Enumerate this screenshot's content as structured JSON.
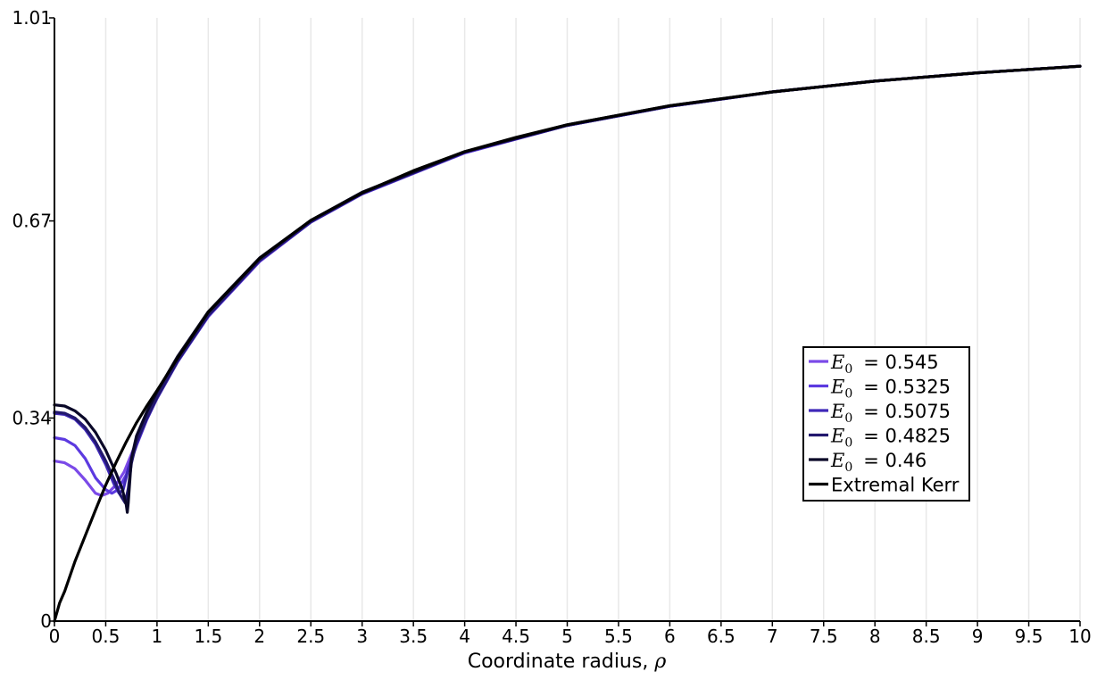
{
  "chart_data": {
    "type": "line",
    "title": "",
    "xlabel": "Coordinate radius, ",
    "xlabel_symbol": "ρ",
    "ylabel": "",
    "xlim": [
      0,
      10
    ],
    "ylim": [
      0,
      1.01
    ],
    "x_ticks": [
      0,
      0.5,
      1,
      1.5,
      2,
      2.5,
      3,
      3.5,
      4,
      4.5,
      5,
      5.5,
      6,
      6.5,
      7,
      7.5,
      8,
      8.5,
      9,
      9.5,
      10
    ],
    "x_tick_labels": [
      "0",
      "0.5",
      "1",
      "1.5",
      "2",
      "2.5",
      "3",
      "3.5",
      "4",
      "4.5",
      "5",
      "5.5",
      "6",
      "6.5",
      "7",
      "7.5",
      "8",
      "8.5",
      "9",
      "9.5",
      "10"
    ],
    "y_ticks": [
      0,
      0.34,
      0.67,
      1.01
    ],
    "y_tick_labels": [
      "0",
      "0.34",
      "0.67",
      "1.01"
    ],
    "grid": "vertical",
    "legend_position": "right-middle",
    "series": [
      {
        "name": "= 0.545",
        "legend_symbol": "E",
        "legend_subscript": "0",
        "color": "#7b4ae8",
        "x": [
          0,
          0.1,
          0.2,
          0.3,
          0.4,
          0.46,
          0.52,
          0.6,
          0.68,
          0.8,
          0.9,
          1.0,
          1.2,
          1.5,
          2,
          2.5,
          3,
          4,
          5,
          6,
          7,
          8,
          9,
          10
        ],
        "y": [
          0.268,
          0.265,
          0.255,
          0.236,
          0.214,
          0.21,
          0.214,
          0.228,
          0.25,
          0.3,
          0.34,
          0.375,
          0.435,
          0.51,
          0.602,
          0.668,
          0.715,
          0.784,
          0.83,
          0.862,
          0.886,
          0.904,
          0.918,
          0.929
        ]
      },
      {
        "name": "= 0.5325",
        "legend_symbol": "E",
        "legend_subscript": "0",
        "color": "#5c3ae0",
        "x": [
          0,
          0.1,
          0.2,
          0.3,
          0.4,
          0.5,
          0.56,
          0.62,
          0.7,
          0.8,
          0.9,
          1.0,
          1.2,
          1.5,
          2,
          2.5,
          3,
          4,
          5,
          6,
          7,
          8,
          9,
          10
        ],
        "y": [
          0.307,
          0.304,
          0.294,
          0.272,
          0.24,
          0.22,
          0.214,
          0.22,
          0.245,
          0.294,
          0.337,
          0.373,
          0.434,
          0.51,
          0.603,
          0.668,
          0.715,
          0.784,
          0.83,
          0.862,
          0.886,
          0.904,
          0.918,
          0.929
        ]
      },
      {
        "name": "= 0.5075",
        "legend_symbol": "E",
        "legend_subscript": "0",
        "color": "#3f28b8",
        "x": [
          0,
          0.1,
          0.2,
          0.3,
          0.4,
          0.5,
          0.58,
          0.63,
          0.67,
          0.72,
          0.8,
          0.9,
          1.0,
          1.2,
          1.5,
          2,
          2.5,
          3,
          4,
          5,
          6,
          7,
          8,
          9,
          10
        ],
        "y": [
          0.348,
          0.346,
          0.338,
          0.321,
          0.296,
          0.262,
          0.23,
          0.214,
          0.22,
          0.255,
          0.296,
          0.338,
          0.373,
          0.434,
          0.511,
          0.603,
          0.668,
          0.716,
          0.785,
          0.83,
          0.862,
          0.886,
          0.904,
          0.918,
          0.929
        ]
      },
      {
        "name": "= 0.4825",
        "legend_symbol": "E",
        "legend_subscript": "0",
        "color": "#22186e",
        "x": [
          0,
          0.1,
          0.2,
          0.3,
          0.4,
          0.5,
          0.58,
          0.64,
          0.69,
          0.72,
          0.75,
          0.8,
          0.9,
          1.0,
          1.2,
          1.5,
          2,
          2.5,
          3,
          4,
          5,
          6,
          7,
          8,
          9,
          10
        ],
        "y": [
          0.35,
          0.348,
          0.34,
          0.324,
          0.3,
          0.268,
          0.238,
          0.212,
          0.198,
          0.222,
          0.264,
          0.3,
          0.34,
          0.375,
          0.436,
          0.512,
          0.604,
          0.669,
          0.716,
          0.785,
          0.83,
          0.862,
          0.886,
          0.904,
          0.918,
          0.929
        ]
      },
      {
        "name": "= 0.46",
        "legend_symbol": "E",
        "legend_subscript": "0",
        "color": "#0a0828",
        "x": [
          0,
          0.1,
          0.2,
          0.3,
          0.4,
          0.5,
          0.6,
          0.66,
          0.7,
          0.71,
          0.72,
          0.75,
          0.8,
          0.9,
          1.0,
          1.2,
          1.5,
          2,
          2.5,
          3,
          4,
          5,
          6,
          7,
          8,
          9,
          10
        ],
        "y": [
          0.362,
          0.36,
          0.352,
          0.338,
          0.316,
          0.286,
          0.248,
          0.222,
          0.195,
          0.182,
          0.198,
          0.272,
          0.31,
          0.35,
          0.384,
          0.443,
          0.518,
          0.608,
          0.671,
          0.718,
          0.786,
          0.831,
          0.863,
          0.886,
          0.904,
          0.918,
          0.929
        ]
      },
      {
        "name": "Extremal Kerr",
        "color": "#000000",
        "x": [
          0,
          0.05,
          0.1,
          0.2,
          0.3,
          0.4,
          0.5,
          0.6,
          0.7,
          0.8,
          0.9,
          1.0,
          1.2,
          1.5,
          2,
          2.5,
          3,
          3.5,
          4,
          4.5,
          5,
          6,
          7,
          8,
          9,
          10
        ],
        "y": [
          0,
          0.03,
          0.05,
          0.1,
          0.143,
          0.186,
          0.228,
          0.265,
          0.3,
          0.332,
          0.36,
          0.386,
          0.44,
          0.517,
          0.607,
          0.671,
          0.717,
          0.754,
          0.786,
          0.81,
          0.831,
          0.863,
          0.886,
          0.904,
          0.918,
          0.929
        ]
      }
    ]
  }
}
